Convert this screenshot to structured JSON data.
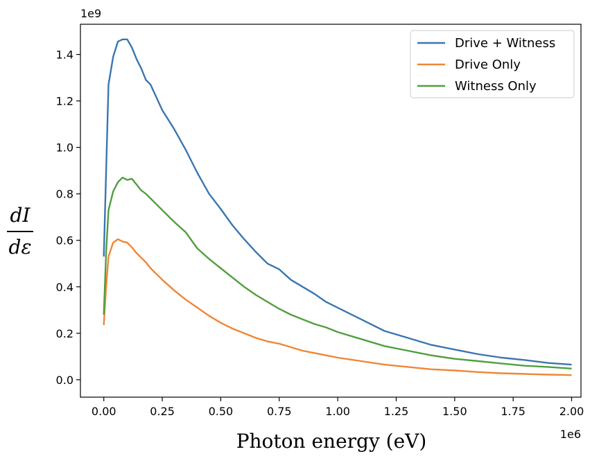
{
  "chart_data": {
    "type": "line",
    "title": "",
    "xlabel": "Photon energy (eV)",
    "ylabel": {
      "numerator": "dI",
      "denominator": "dε"
    },
    "x_offset_text": "1e6",
    "y_offset_text": "1e9",
    "xlim": [
      -0.1,
      2.04
    ],
    "ylim": [
      -0.075,
      1.53
    ],
    "x_ticks": [
      0.0,
      0.25,
      0.5,
      0.75,
      1.0,
      1.25,
      1.5,
      1.75,
      2.0
    ],
    "x_tick_labels": [
      "0.00",
      "0.25",
      "0.50",
      "0.75",
      "1.00",
      "1.25",
      "1.50",
      "1.75",
      "2.00"
    ],
    "y_ticks": [
      0.0,
      0.2,
      0.4,
      0.6,
      0.8,
      1.0,
      1.2,
      1.4
    ],
    "y_tick_labels": [
      "0.0",
      "0.2",
      "0.4",
      "0.6",
      "0.8",
      "1.0",
      "1.2",
      "1.4"
    ],
    "grid": false,
    "legend_position": "top-right",
    "series": [
      {
        "name": "Drive + Witness",
        "color": "#3a75b0",
        "x": [
          0.0,
          0.01,
          0.02,
          0.04,
          0.06,
          0.08,
          0.1,
          0.12,
          0.14,
          0.16,
          0.18,
          0.2,
          0.25,
          0.3,
          0.35,
          0.4,
          0.45,
          0.5,
          0.55,
          0.6,
          0.65,
          0.7,
          0.75,
          0.8,
          0.85,
          0.9,
          0.95,
          1.0,
          1.1,
          1.2,
          1.3,
          1.4,
          1.5,
          1.6,
          1.7,
          1.8,
          1.9,
          2.0
        ],
        "y": [
          0.53,
          0.9,
          1.27,
          1.39,
          1.455,
          1.465,
          1.465,
          1.43,
          1.38,
          1.34,
          1.29,
          1.27,
          1.16,
          1.08,
          0.99,
          0.89,
          0.8,
          0.735,
          0.665,
          0.605,
          0.55,
          0.5,
          0.475,
          0.43,
          0.4,
          0.37,
          0.335,
          0.31,
          0.26,
          0.21,
          0.18,
          0.15,
          0.13,
          0.11,
          0.095,
          0.085,
          0.072,
          0.065
        ]
      },
      {
        "name": "Drive Only",
        "color": "#ef8636",
        "x": [
          0.0,
          0.01,
          0.02,
          0.04,
          0.06,
          0.08,
          0.1,
          0.12,
          0.14,
          0.16,
          0.18,
          0.2,
          0.25,
          0.3,
          0.35,
          0.4,
          0.45,
          0.5,
          0.55,
          0.6,
          0.65,
          0.7,
          0.75,
          0.8,
          0.85,
          0.9,
          0.95,
          1.0,
          1.1,
          1.2,
          1.3,
          1.4,
          1.5,
          1.6,
          1.7,
          1.8,
          1.9,
          2.0
        ],
        "y": [
          0.235,
          0.4,
          0.53,
          0.59,
          0.605,
          0.595,
          0.59,
          0.57,
          0.545,
          0.525,
          0.505,
          0.48,
          0.43,
          0.385,
          0.345,
          0.31,
          0.275,
          0.245,
          0.22,
          0.2,
          0.18,
          0.165,
          0.155,
          0.14,
          0.125,
          0.115,
          0.105,
          0.095,
          0.08,
          0.065,
          0.055,
          0.045,
          0.04,
          0.033,
          0.028,
          0.025,
          0.022,
          0.02
        ]
      },
      {
        "name": "Witness Only",
        "color": "#519e3e",
        "x": [
          0.0,
          0.01,
          0.02,
          0.04,
          0.06,
          0.08,
          0.1,
          0.12,
          0.14,
          0.16,
          0.18,
          0.2,
          0.25,
          0.3,
          0.35,
          0.4,
          0.45,
          0.5,
          0.55,
          0.6,
          0.65,
          0.7,
          0.75,
          0.8,
          0.85,
          0.9,
          0.95,
          1.0,
          1.1,
          1.2,
          1.3,
          1.4,
          1.5,
          1.6,
          1.7,
          1.8,
          1.9,
          2.0
        ],
        "y": [
          0.28,
          0.55,
          0.73,
          0.81,
          0.85,
          0.87,
          0.86,
          0.865,
          0.84,
          0.815,
          0.8,
          0.78,
          0.73,
          0.68,
          0.635,
          0.565,
          0.52,
          0.48,
          0.44,
          0.4,
          0.365,
          0.335,
          0.305,
          0.28,
          0.26,
          0.24,
          0.225,
          0.205,
          0.175,
          0.145,
          0.125,
          0.105,
          0.09,
          0.08,
          0.07,
          0.06,
          0.055,
          0.048
        ]
      }
    ]
  },
  "colors": {
    "axis": "#000000",
    "legend_border": "#cccccc",
    "background": "#ffffff"
  }
}
